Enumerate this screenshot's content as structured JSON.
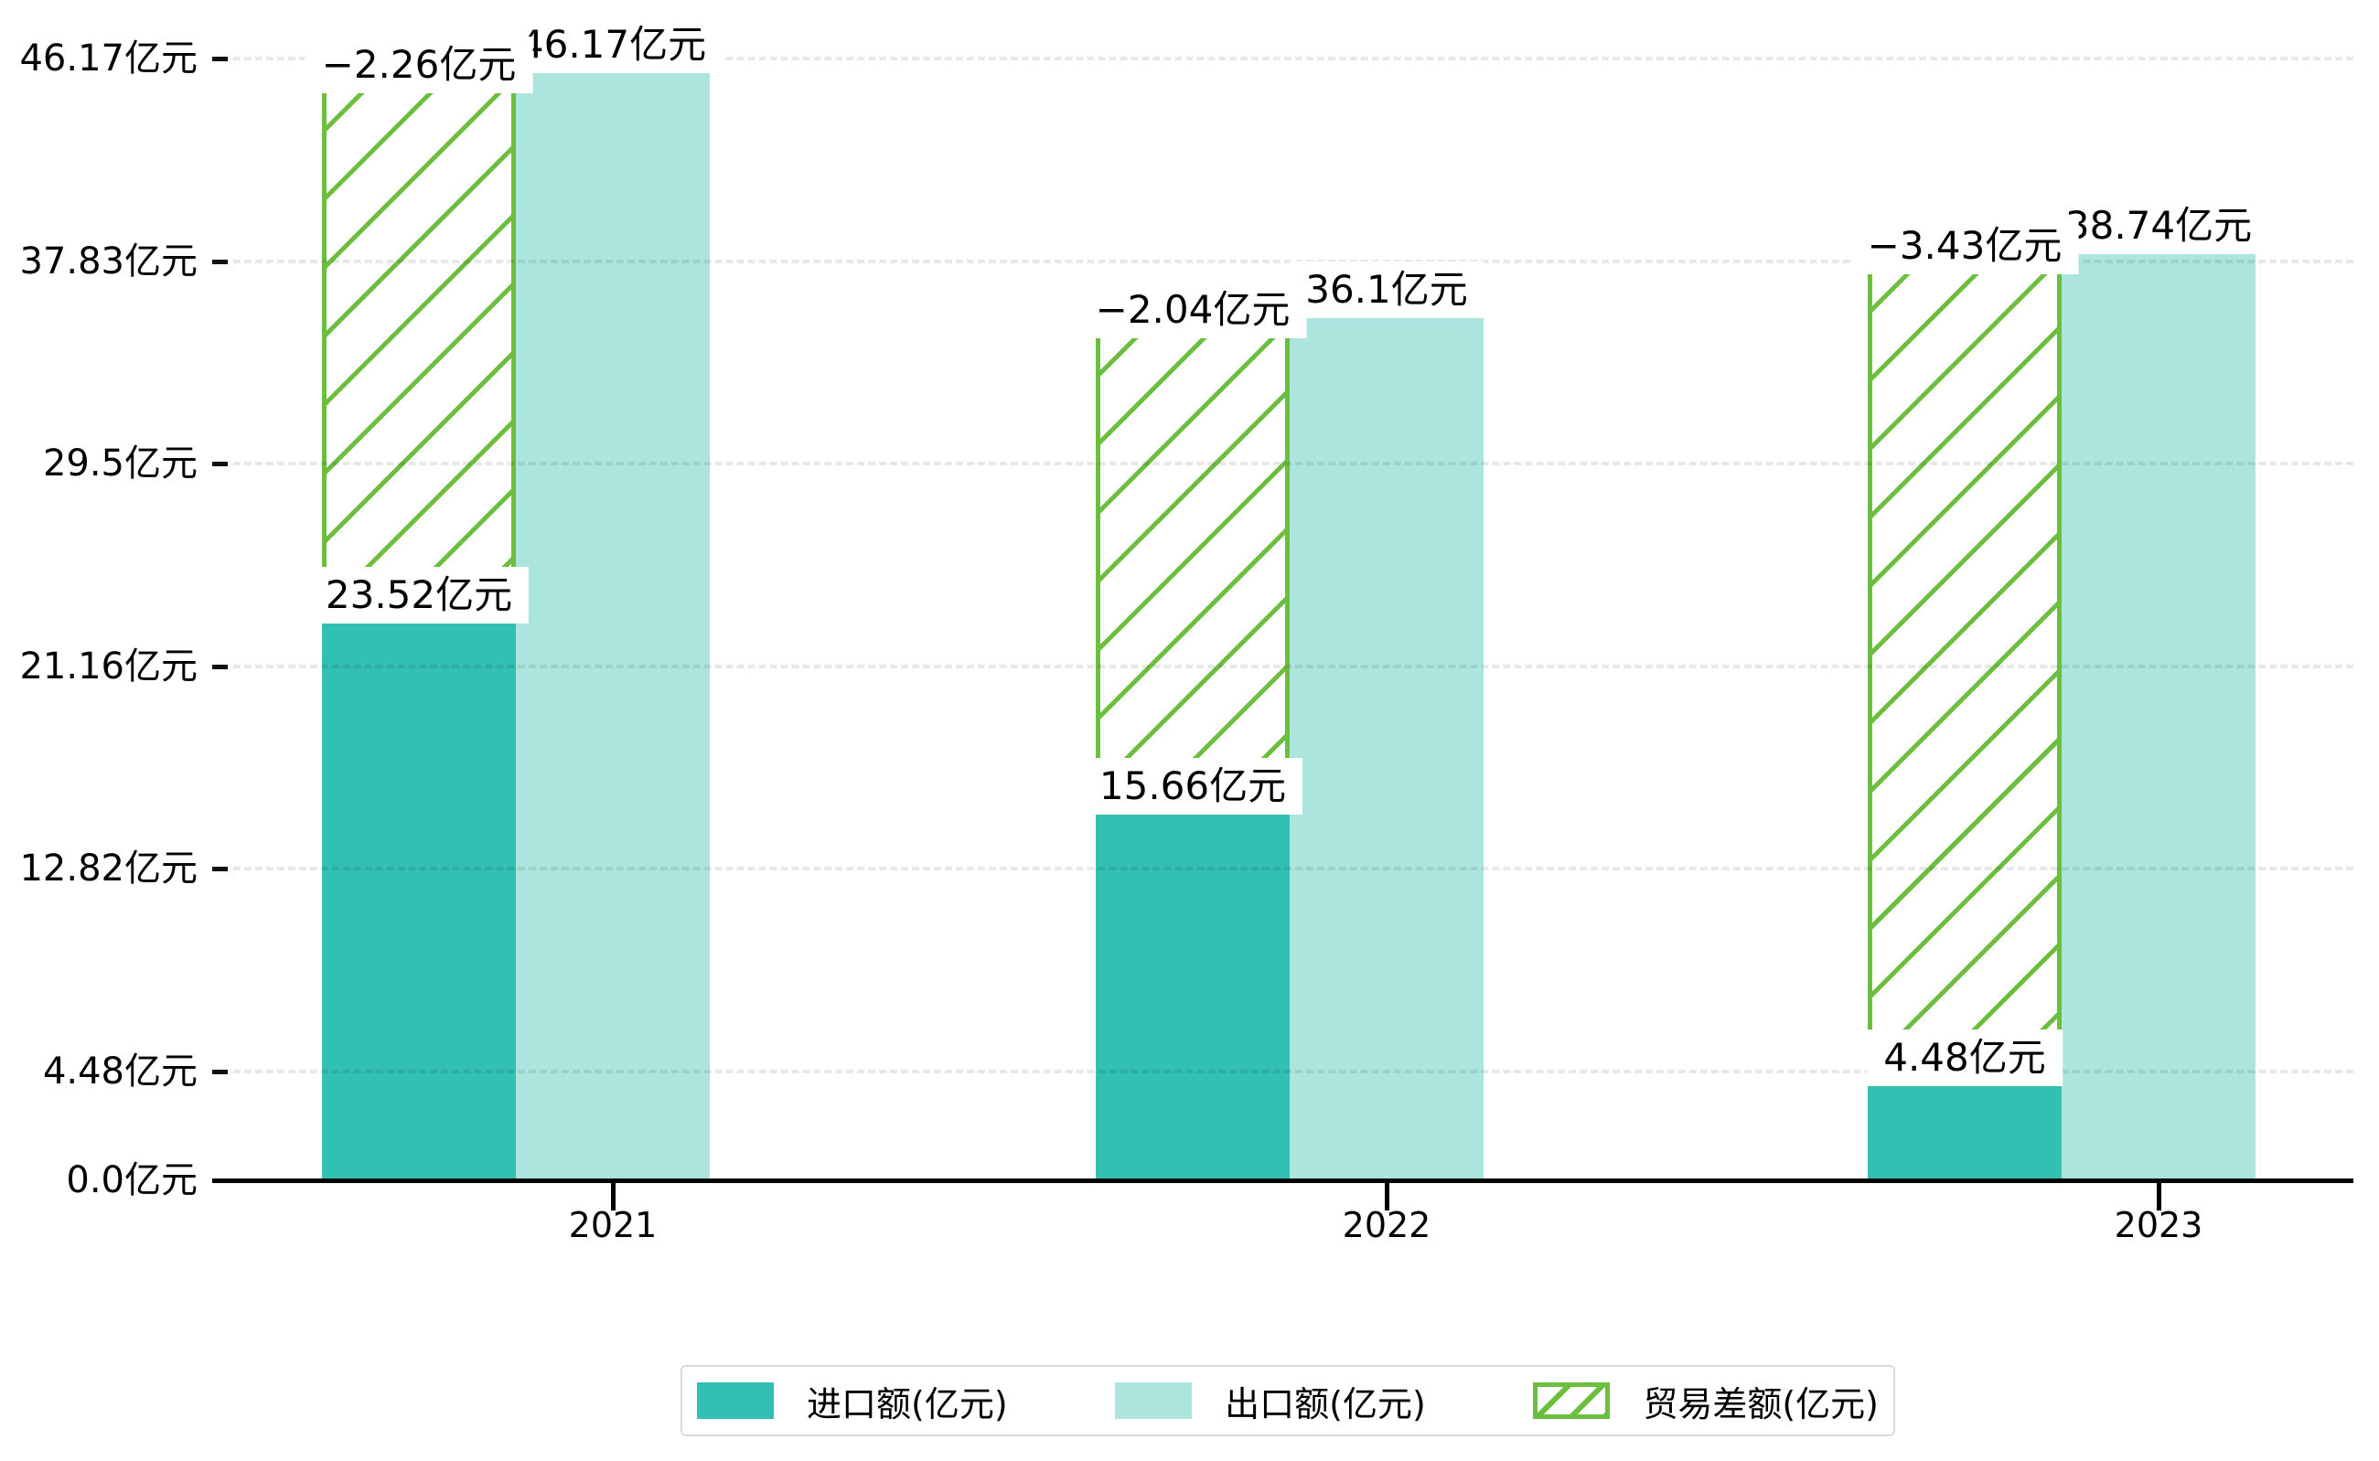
{
  "chart_data": {
    "type": "bar",
    "title": "",
    "unit": "亿元",
    "categories": [
      "2021",
      "2022",
      "2023"
    ],
    "series": [
      {
        "name": "进口额(亿元)",
        "key": "import",
        "color": "#31c0b2",
        "values": [
          23.52,
          15.66,
          4.48
        ],
        "labels": [
          "23.52亿元",
          "15.66亿元",
          "4.48亿元"
        ]
      },
      {
        "name": "出口额(亿元)",
        "key": "export",
        "color": "#ace5dd",
        "values": [
          46.17,
          36.1,
          38.74
        ],
        "labels": [
          "46.17亿元",
          "36.1亿元",
          "38.74亿元"
        ]
      },
      {
        "name": "贸易差额(亿元)",
        "key": "balance",
        "color": "#6cbe3f",
        "values": [
          -2.26,
          -2.04,
          -3.43
        ],
        "labels": [
          "−2.26亿元",
          "−2.04亿元",
          "−3.43亿元"
        ]
      }
    ],
    "y_axis": {
      "tick_values": [
        0,
        4.48,
        12.82,
        21.16,
        29.5,
        37.83,
        46.17
      ],
      "tick_labels": [
        "0.0亿元",
        "4.48亿元",
        "12.82亿元",
        "21.16亿元",
        "29.5亿元",
        "37.83亿元",
        "46.17亿元"
      ],
      "ylim": [
        0,
        46.17
      ],
      "grid": true
    },
    "legend": {
      "position": "bottom",
      "entries": [
        "进口额(亿元)",
        "出口额(亿元)",
        "贸易差额(亿元)"
      ]
    }
  }
}
